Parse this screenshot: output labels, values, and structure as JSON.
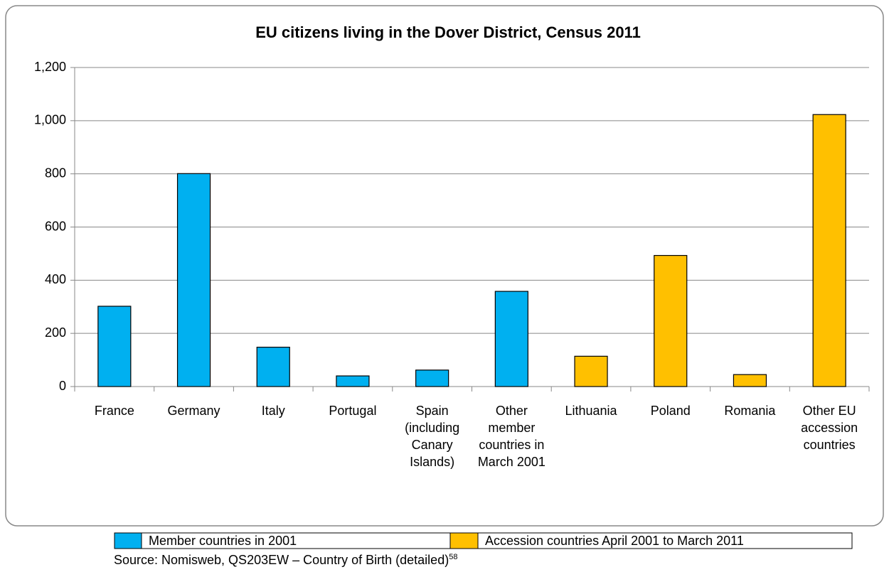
{
  "chart_data": {
    "type": "bar",
    "title": "EU citizens living in the Dover District, Census 2011",
    "categories": [
      "France",
      "Germany",
      "Italy",
      "Portugal",
      "Spain (including Canary Islands)",
      "Other member countries in March 2001",
      "Lithuania",
      "Poland",
      "Romania",
      "Other EU accession countries"
    ],
    "series": [
      {
        "name": "Member countries in 2001",
        "color": "#00b0f0",
        "values": [
          302,
          801,
          148,
          40,
          62,
          358,
          null,
          null,
          null,
          null
        ]
      },
      {
        "name": "Accession countries April 2001 to March 2011",
        "color": "#ffc000",
        "values": [
          null,
          null,
          null,
          null,
          null,
          null,
          114,
          493,
          45,
          1023
        ]
      }
    ],
    "ylim": [
      0,
      1200
    ],
    "yticks": [
      0,
      200,
      400,
      600,
      800,
      {
        "value": 1000,
        "label": "1,000"
      },
      {
        "value": 1200,
        "label": "1,200"
      }
    ],
    "grid": true,
    "source": "Source: Nomisweb, QS203EW – Country of Birth (detailed)",
    "source_note": "58"
  }
}
